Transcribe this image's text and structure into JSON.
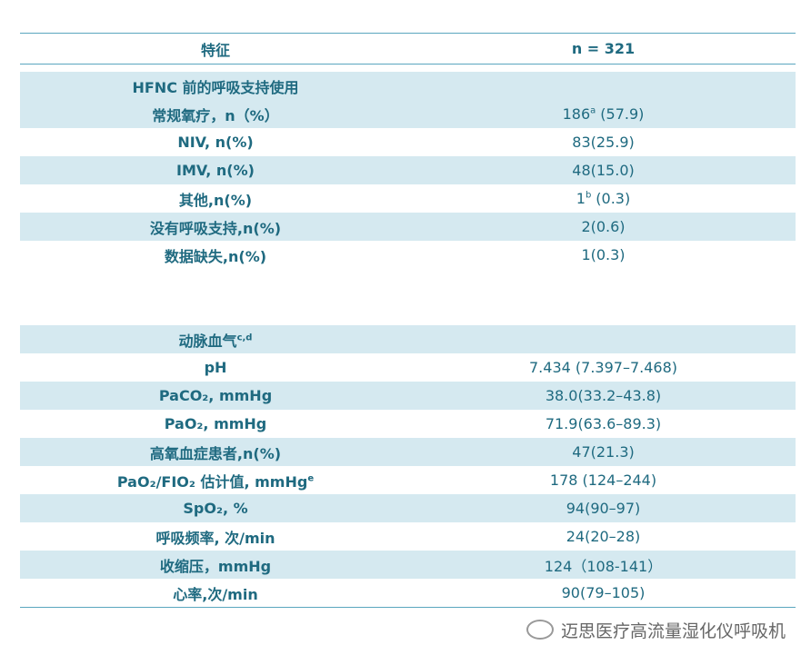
{
  "table": {
    "header": [
      "特征",
      "n = 321"
    ],
    "rows": [
      {
        "label": "HFNC 前的呼吸支持使用"
      },
      {
        "label": "常规氧疗，n（%）",
        "value": "186",
        "value_note": "a",
        "value_tail": "(57.9)"
      },
      {
        "label": "NIV, n(%)",
        "value": "83(25.9)"
      },
      {
        "label": "IMV, n(%)",
        "value": "48(15.0)"
      },
      {
        "label": "其他,n(%)",
        "value": "1",
        "value_note": "b",
        "value_tail": "(0.3)"
      },
      {
        "label": "没有呼吸支持,n(%)",
        "value": "2(0.6)"
      },
      {
        "label": "数据缺失,n(%)",
        "value": "1(0.3)"
      },
      {
        "label": "动脉血气",
        "label_note": "c,d"
      },
      {
        "label": "pH",
        "value": "7.434 (7.397–7.468)"
      },
      {
        "label": "PaCO₂, mmHg",
        "value": "38.0(33.2–43.8)"
      },
      {
        "label": "PaO₂, mmHg",
        "value": "71.9(63.6–89.3)"
      },
      {
        "label": "高氧血症患者,n(%)",
        "value": "47(21.3)"
      },
      {
        "label": "PaO₂/FIO₂ 估计值, mmHg",
        "label_note": "e",
        "value": "178 (124–244)"
      },
      {
        "label": "SpO₂, %",
        "value": "94(90–97)"
      },
      {
        "label": "呼吸频率, 次/min",
        "value": "24(20–28)"
      },
      {
        "label": "收缩压，mmHg",
        "value": "124（108-141）"
      },
      {
        "label": "心率,次/min",
        "value": "90(79–105)"
      }
    ]
  },
  "watermark": "迈思医疗高流量湿化仪呼吸机"
}
